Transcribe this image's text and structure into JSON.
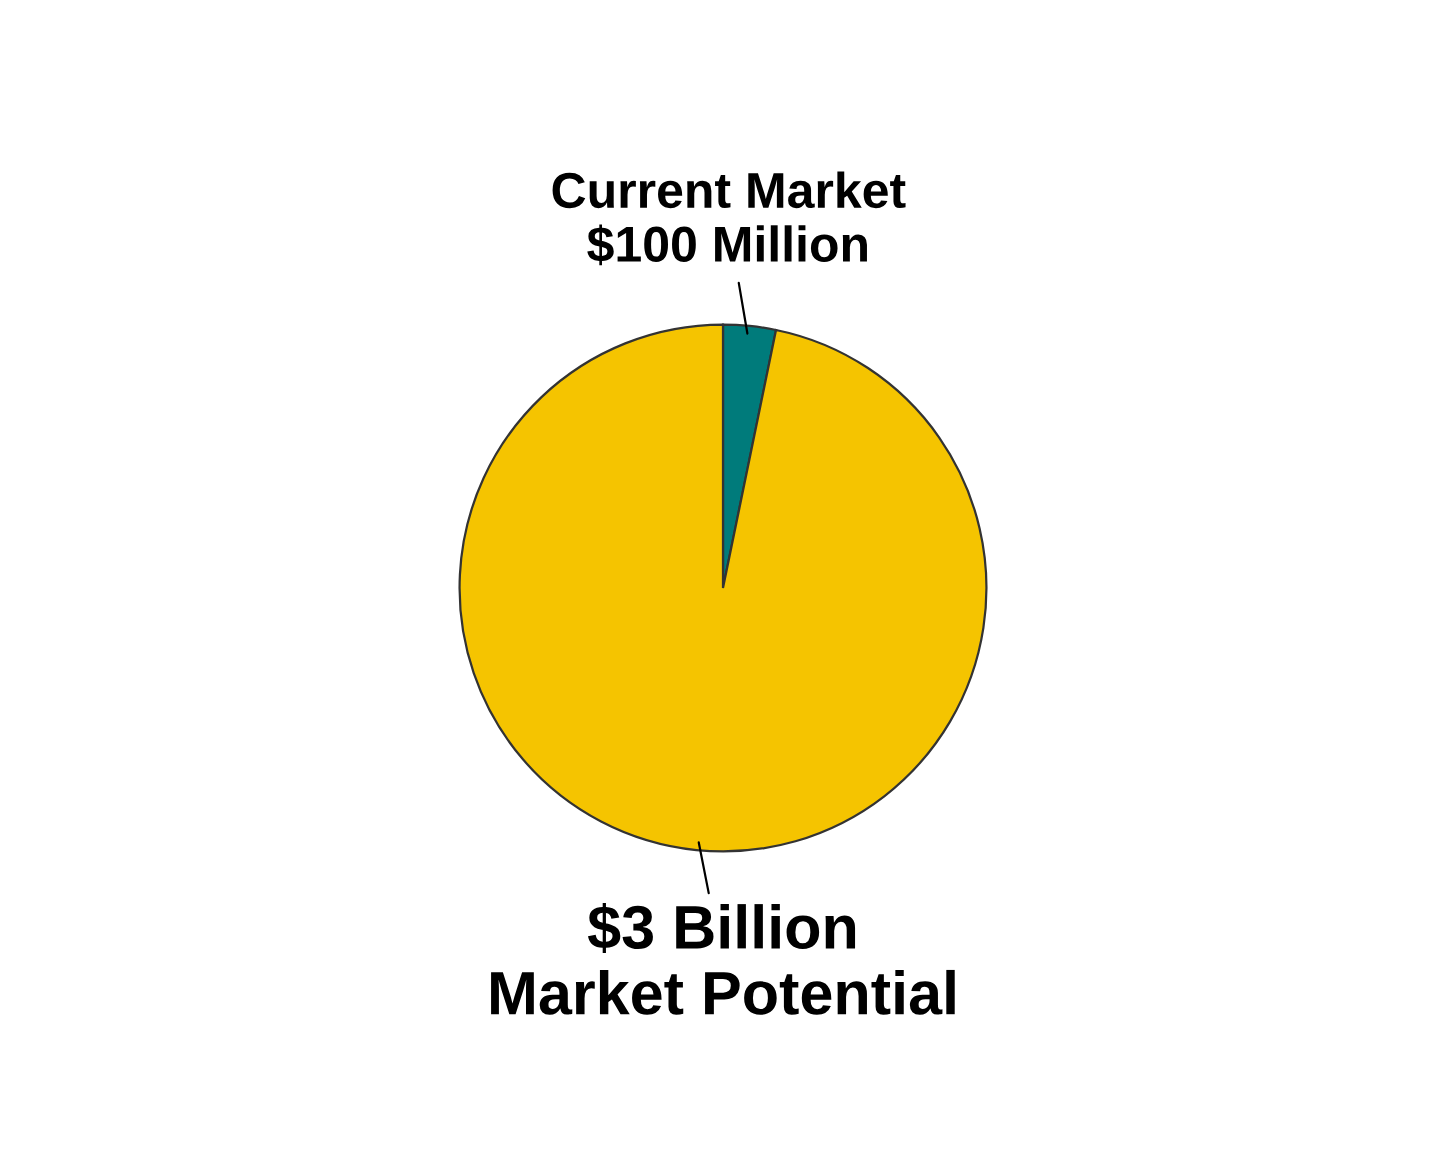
{
  "chart_data": {
    "type": "pie",
    "categories": [
      "Current Market\n$100 Million",
      "$3 Billion\nMarket Potential"
    ],
    "values": [
      100,
      3000
    ],
    "colors": [
      "#007b7b",
      "#f5c400"
    ]
  }
}
